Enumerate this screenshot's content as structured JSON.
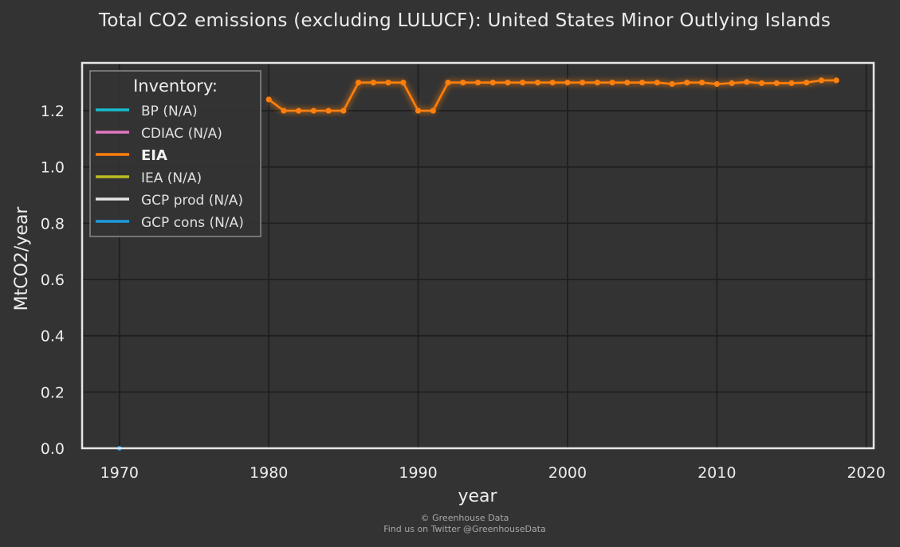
{
  "chart_data": {
    "type": "line",
    "title": "Total CO2 emissions (excluding LULUCF): United States Minor Outlying Islands",
    "xlabel": "year",
    "ylabel": "MtCO2/year",
    "xlim": [
      1967.5,
      2020.5
    ],
    "ylim": [
      0,
      1.37
    ],
    "xticks": [
      1970,
      1980,
      1990,
      2000,
      2010,
      2020
    ],
    "yticks": [
      0.0,
      0.2,
      0.4,
      0.6,
      0.8,
      1.0,
      1.2
    ],
    "grid": true,
    "legend": {
      "title": "Inventory:",
      "placement": "top-left",
      "entries": [
        {
          "label": "BP (N/A)",
          "color": "#17becf",
          "active": false
        },
        {
          "label": "CDIAC (N/A)",
          "color": "#e377c2",
          "active": false
        },
        {
          "label": "EIA",
          "color": "#ff7f0e",
          "active": true
        },
        {
          "label": "IEA (N/A)",
          "color": "#bcbd22",
          "active": false
        },
        {
          "label": "GCP prod (N/A)",
          "color": "#e6e6e6",
          "active": false
        },
        {
          "label": "GCP cons (N/A)",
          "color": "#1f9bde",
          "active": false
        }
      ]
    },
    "series": [
      {
        "name": "EIA",
        "color": "#ff7f0e",
        "x": [
          1980,
          1981,
          1982,
          1983,
          1984,
          1985,
          1986,
          1987,
          1988,
          1989,
          1990,
          1991,
          1992,
          1993,
          1994,
          1995,
          1996,
          1997,
          1998,
          1999,
          2000,
          2001,
          2002,
          2003,
          2004,
          2005,
          2006,
          2007,
          2008,
          2009,
          2010,
          2011,
          2012,
          2013,
          2014,
          2015,
          2016,
          2017,
          2018
        ],
        "y": [
          1.24,
          1.2,
          1.2,
          1.2,
          1.2,
          1.2,
          1.3,
          1.3,
          1.3,
          1.3,
          1.2,
          1.2,
          1.3,
          1.3,
          1.3,
          1.3,
          1.3,
          1.3,
          1.3,
          1.3,
          1.3,
          1.3,
          1.3,
          1.3,
          1.3,
          1.3,
          1.3,
          1.295,
          1.3,
          1.3,
          1.295,
          1.298,
          1.302,
          1.298,
          1.298,
          1.298,
          1.3,
          1.308,
          1.308
        ]
      },
      {
        "name": "GCP cons",
        "color": "#1f9bde",
        "x": [
          1970
        ],
        "y": [
          0.0
        ]
      }
    ]
  },
  "credits": {
    "line1": "© Greenhouse Data",
    "line2": "Find us on Twitter @GreenhouseData"
  }
}
